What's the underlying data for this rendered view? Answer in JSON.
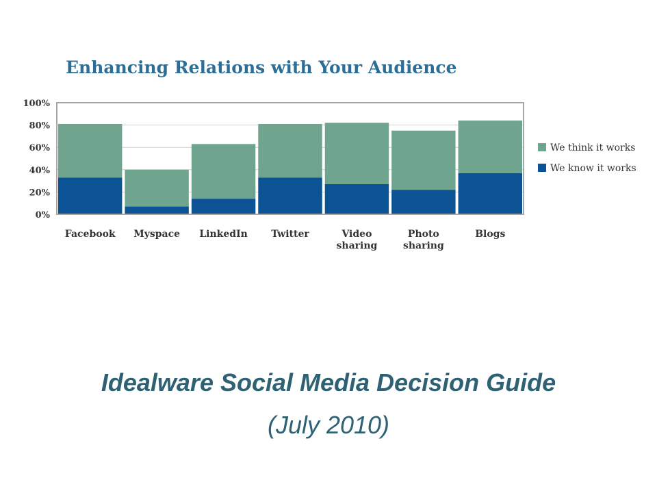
{
  "chart_data": {
    "type": "bar",
    "stacked": true,
    "title": "Enhancing Relations with Your Audience",
    "categories": [
      "Facebook",
      "Myspace",
      "LinkedIn",
      "Twitter",
      "Video sharing",
      "Photo sharing",
      "Blogs"
    ],
    "series": [
      {
        "name": "We know it works",
        "values": [
          33,
          7,
          14,
          33,
          27,
          22,
          37
        ],
        "color": "#0b5394"
      },
      {
        "name": "We think it works",
        "values": [
          48,
          33,
          49,
          48,
          55,
          53,
          47
        ],
        "color": "#6fa58e"
      }
    ],
    "ylim": [
      0,
      100
    ],
    "yticks": [
      "0%",
      "20%",
      "40%",
      "60%",
      "80%",
      "100%"
    ],
    "grid": true,
    "legend": "right"
  },
  "footer": {
    "title": "Idealware Social Media Decision Guide",
    "subtitle": "(July 2010)"
  }
}
